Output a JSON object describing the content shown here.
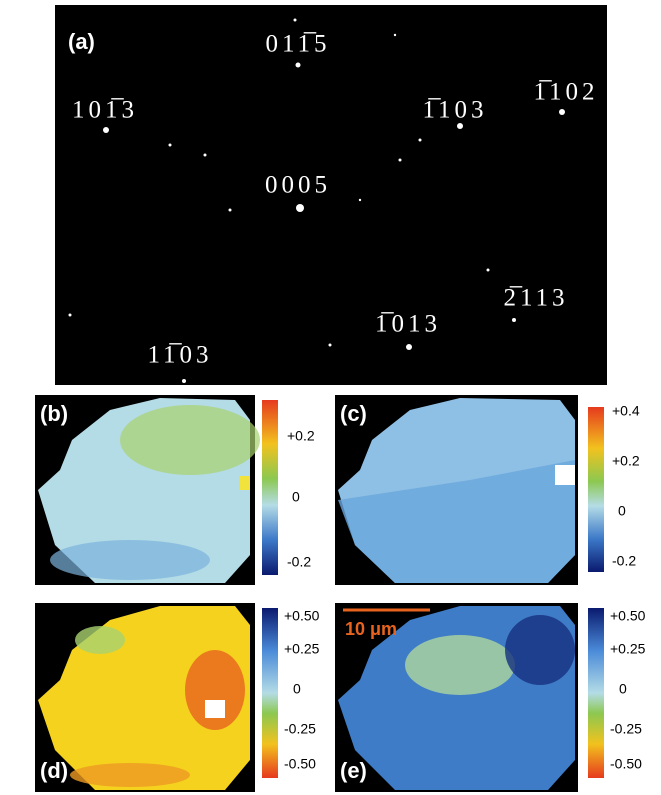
{
  "panel_a": {
    "label": "(a)",
    "spots": [
      "011̅5",
      "101̅3",
      "1̅103",
      "1̅102",
      "0005",
      "2̅113",
      "1̅013",
      "11̅03"
    ]
  },
  "panel_b": {
    "label": "(b)",
    "colorbar": [
      "+0.2",
      "0",
      "-0.2"
    ]
  },
  "panel_c": {
    "label": "(c)",
    "colorbar": [
      "+0.4",
      "+0.2",
      "0",
      "-0.2"
    ]
  },
  "panel_d": {
    "label": "(d)",
    "colorbar": [
      "+0.50",
      "+0.25",
      "0",
      "-0.25",
      "-0.50"
    ]
  },
  "panel_e": {
    "label": "(e)",
    "colorbar": [
      "+0.50",
      "+0.25",
      "0",
      "-0.25",
      "-0.50"
    ],
    "scale_bar": "10 μm"
  }
}
